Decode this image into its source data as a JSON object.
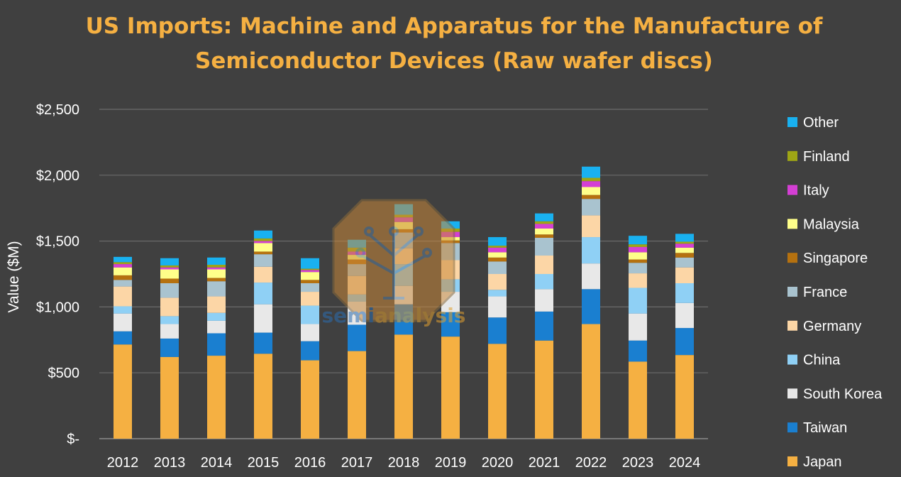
{
  "chart_data": {
    "type": "bar",
    "stacked": true,
    "title_lines": [
      "US Imports: Machine and Apparatus for the Manufacture of",
      "Semiconductor Devices (Raw wafer discs)"
    ],
    "ylabel": "Value ($M)",
    "xlabel": "",
    "ylim": [
      0,
      2500
    ],
    "yticks": [
      0,
      500,
      1000,
      1500,
      2000,
      2500
    ],
    "ytick_labels": [
      "$-",
      "$500",
      "$1,000",
      "$1,500",
      "$2,000",
      "$2,500"
    ],
    "grid": true,
    "legend_position": "right",
    "categories": [
      "2012",
      "2013",
      "2014",
      "2015",
      "2016",
      "2017",
      "2018",
      "2019",
      "2020",
      "2021",
      "2022",
      "2023",
      "2024"
    ],
    "series": [
      {
        "name": "Japan",
        "color": "#f5b042",
        "values": [
          715,
          620,
          630,
          645,
          595,
          665,
          790,
          775,
          720,
          745,
          870,
          585,
          635
        ]
      },
      {
        "name": "Taiwan",
        "color": "#1a7fd0",
        "values": [
          100,
          140,
          170,
          160,
          145,
          200,
          230,
          185,
          200,
          220,
          265,
          160,
          205
        ]
      },
      {
        "name": "South Korea",
        "color": "#e8e8e8",
        "values": [
          135,
          110,
          95,
          215,
          130,
          175,
          140,
          155,
          160,
          170,
          195,
          205,
          190
        ]
      },
      {
        "name": "China",
        "color": "#8fd0f5",
        "values": [
          55,
          60,
          60,
          165,
          140,
          55,
          165,
          95,
          50,
          115,
          200,
          195,
          150
        ]
      },
      {
        "name": "Germany",
        "color": "#fcd6a6",
        "values": [
          150,
          140,
          125,
          120,
          105,
          140,
          120,
          145,
          120,
          140,
          165,
          110,
          120
        ]
      },
      {
        "name": "France",
        "color": "#a9c3cf",
        "values": [
          50,
          110,
          115,
          95,
          65,
          90,
          120,
          130,
          95,
          135,
          125,
          80,
          75
        ]
      },
      {
        "name": "Singapore",
        "color": "#b5710f",
        "values": [
          35,
          35,
          25,
          20,
          25,
          35,
          25,
          20,
          30,
          25,
          30,
          25,
          35
        ]
      },
      {
        "name": "Malaysia",
        "color": "#ffff8a",
        "values": [
          60,
          70,
          65,
          65,
          60,
          35,
          55,
          25,
          40,
          45,
          60,
          55,
          40
        ]
      },
      {
        "name": "Italy",
        "color": "#d43fd4",
        "values": [
          25,
          15,
          15,
          15,
          15,
          25,
          35,
          40,
          35,
          35,
          45,
          40,
          30
        ]
      },
      {
        "name": "Finland",
        "color": "#9ea515",
        "values": [
          15,
          15,
          20,
          20,
          10,
          30,
          20,
          25,
          15,
          20,
          25,
          20,
          15
        ]
      },
      {
        "name": "Other",
        "color": "#19b1f0",
        "values": [
          40,
          55,
          55,
          60,
          80,
          60,
          80,
          55,
          65,
          60,
          85,
          65,
          60
        ]
      }
    ]
  },
  "watermark": {
    "text_semi": "semi",
    "text_analysis": "analysis",
    "color_semi": "#2b6cb0",
    "color_analysis": "#e0a030"
  }
}
